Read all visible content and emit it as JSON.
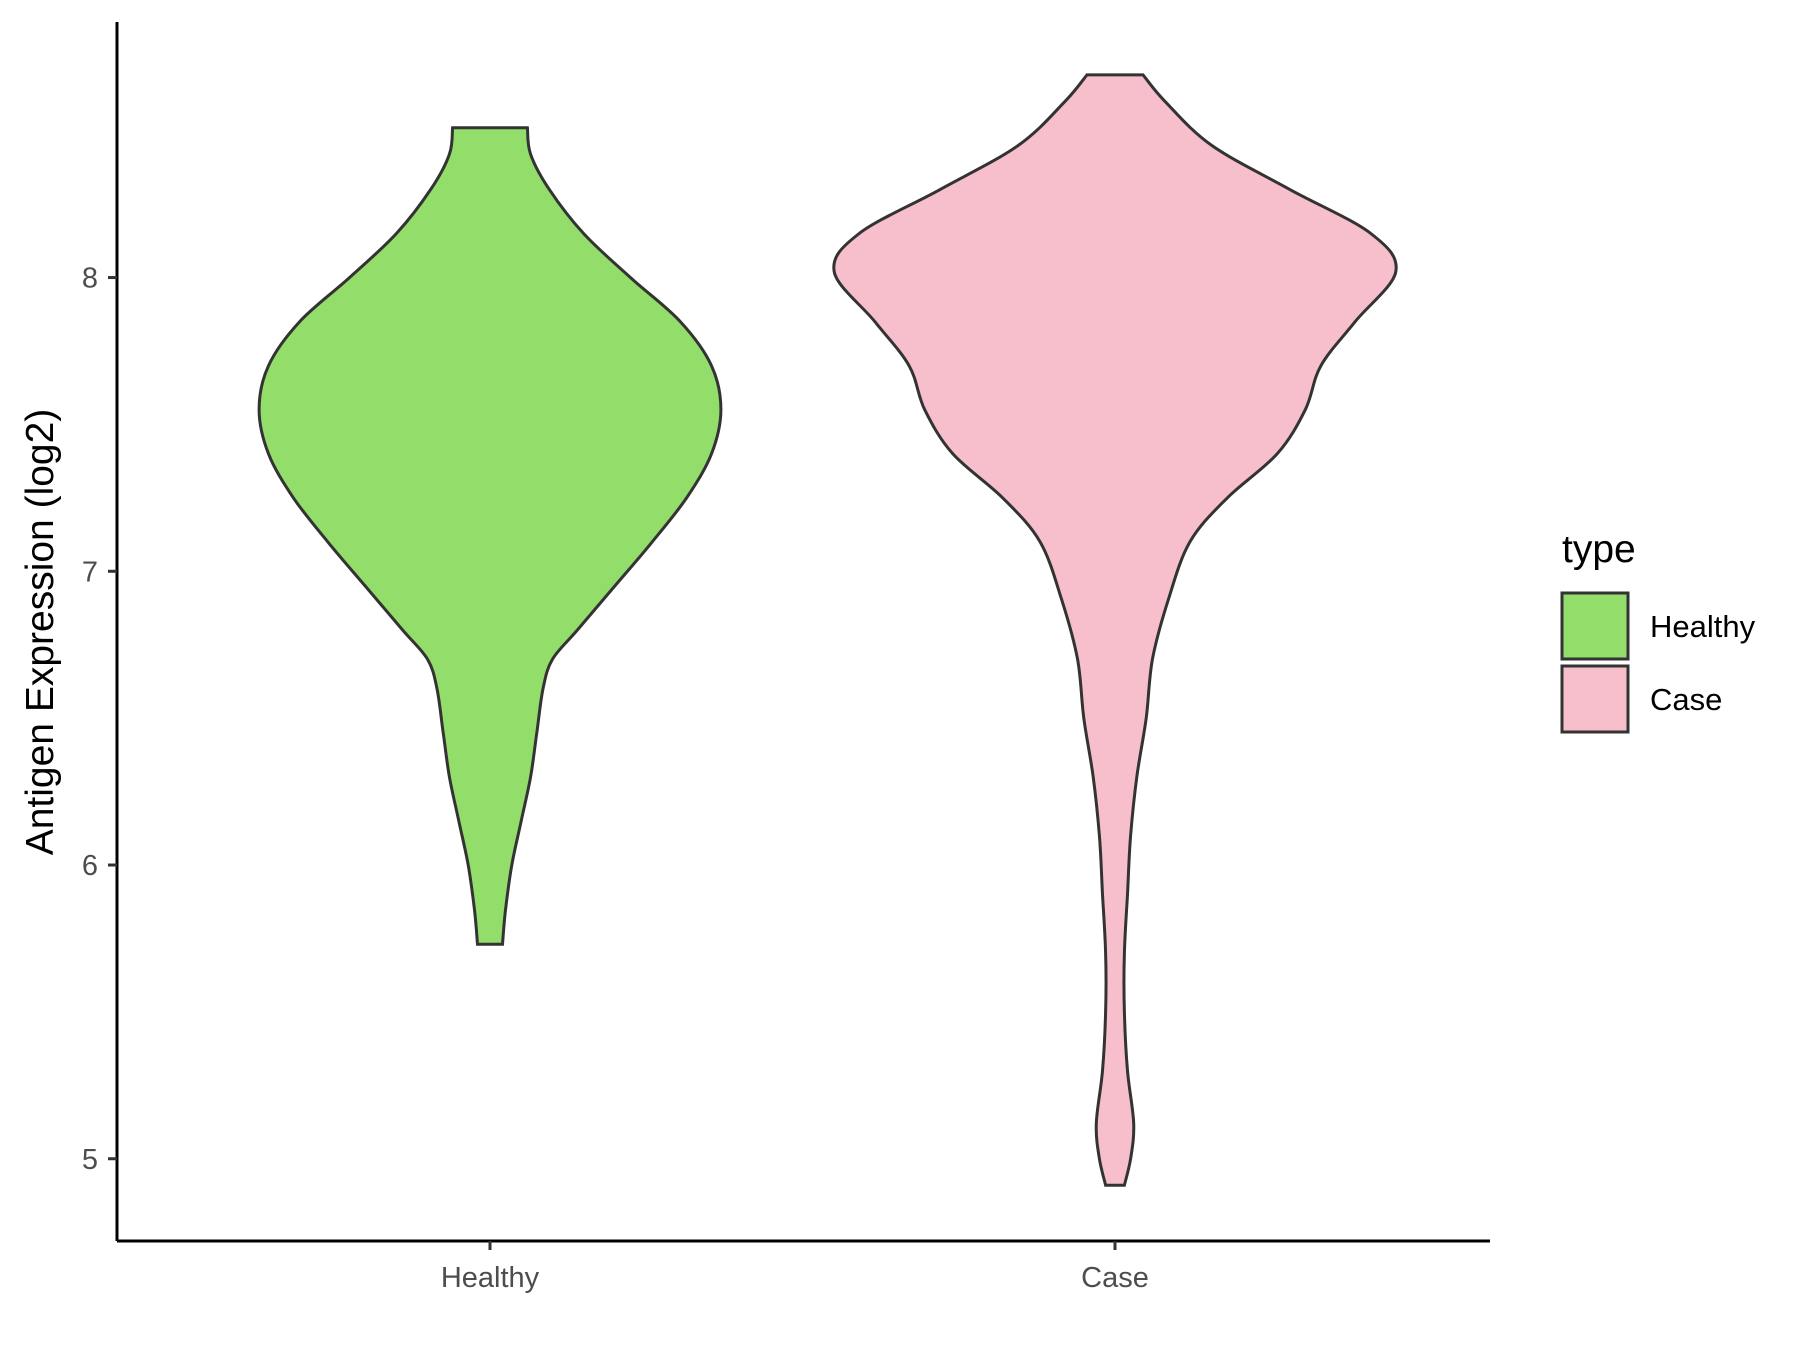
{
  "chart_data": {
    "type": "violin",
    "ylabel": "Antigen Expression (log2)",
    "xlabel": "",
    "categories": [
      "Healthy",
      "Case"
    ],
    "ylim": [
      4.72,
      8.87
    ],
    "yticks": [
      5,
      6,
      7,
      8
    ],
    "grid": false,
    "legend": {
      "title": "type",
      "placement": "right",
      "entries": [
        {
          "label": "Healthy",
          "color": "#93dd6b"
        },
        {
          "label": "Case",
          "color": "#f7bfcb"
        }
      ]
    },
    "series": [
      {
        "category": "Healthy",
        "color": "#93dd6b",
        "min": 5.73,
        "max": 8.51,
        "density_profile": [
          {
            "y": 5.73,
            "half_width": 0.04
          },
          {
            "y": 5.85,
            "half_width": 0.05
          },
          {
            "y": 6.0,
            "half_width": 0.07
          },
          {
            "y": 6.15,
            "half_width": 0.1
          },
          {
            "y": 6.3,
            "half_width": 0.13
          },
          {
            "y": 6.45,
            "half_width": 0.15
          },
          {
            "y": 6.6,
            "half_width": 0.17
          },
          {
            "y": 6.7,
            "half_width": 0.2
          },
          {
            "y": 6.8,
            "half_width": 0.28
          },
          {
            "y": 6.95,
            "half_width": 0.4
          },
          {
            "y": 7.1,
            "half_width": 0.52
          },
          {
            "y": 7.25,
            "half_width": 0.63
          },
          {
            "y": 7.4,
            "half_width": 0.71
          },
          {
            "y": 7.55,
            "half_width": 0.74
          },
          {
            "y": 7.7,
            "half_width": 0.71
          },
          {
            "y": 7.85,
            "half_width": 0.61
          },
          {
            "y": 8.0,
            "half_width": 0.45
          },
          {
            "y": 8.15,
            "half_width": 0.3
          },
          {
            "y": 8.3,
            "half_width": 0.19
          },
          {
            "y": 8.42,
            "half_width": 0.13
          },
          {
            "y": 8.51,
            "half_width": 0.12
          }
        ]
      },
      {
        "category": "Case",
        "color": "#f7bfcb",
        "min": 4.91,
        "max": 8.69,
        "density_profile": [
          {
            "y": 4.91,
            "half_width": 0.03
          },
          {
            "y": 5.0,
            "half_width": 0.05
          },
          {
            "y": 5.12,
            "half_width": 0.06
          },
          {
            "y": 5.3,
            "half_width": 0.04
          },
          {
            "y": 5.5,
            "half_width": 0.03
          },
          {
            "y": 5.7,
            "half_width": 0.03
          },
          {
            "y": 5.9,
            "half_width": 0.04
          },
          {
            "y": 6.1,
            "half_width": 0.05
          },
          {
            "y": 6.3,
            "half_width": 0.07
          },
          {
            "y": 6.5,
            "half_width": 0.1
          },
          {
            "y": 6.7,
            "half_width": 0.12
          },
          {
            "y": 6.9,
            "half_width": 0.17
          },
          {
            "y": 7.1,
            "half_width": 0.24
          },
          {
            "y": 7.25,
            "half_width": 0.36
          },
          {
            "y": 7.4,
            "half_width": 0.52
          },
          {
            "y": 7.55,
            "half_width": 0.61
          },
          {
            "y": 7.7,
            "half_width": 0.66
          },
          {
            "y": 7.85,
            "half_width": 0.77
          },
          {
            "y": 8.02,
            "half_width": 0.9
          },
          {
            "y": 8.15,
            "half_width": 0.82
          },
          {
            "y": 8.3,
            "half_width": 0.56
          },
          {
            "y": 8.45,
            "half_width": 0.31
          },
          {
            "y": 8.6,
            "half_width": 0.16
          },
          {
            "y": 8.69,
            "half_width": 0.09
          }
        ]
      }
    ]
  }
}
